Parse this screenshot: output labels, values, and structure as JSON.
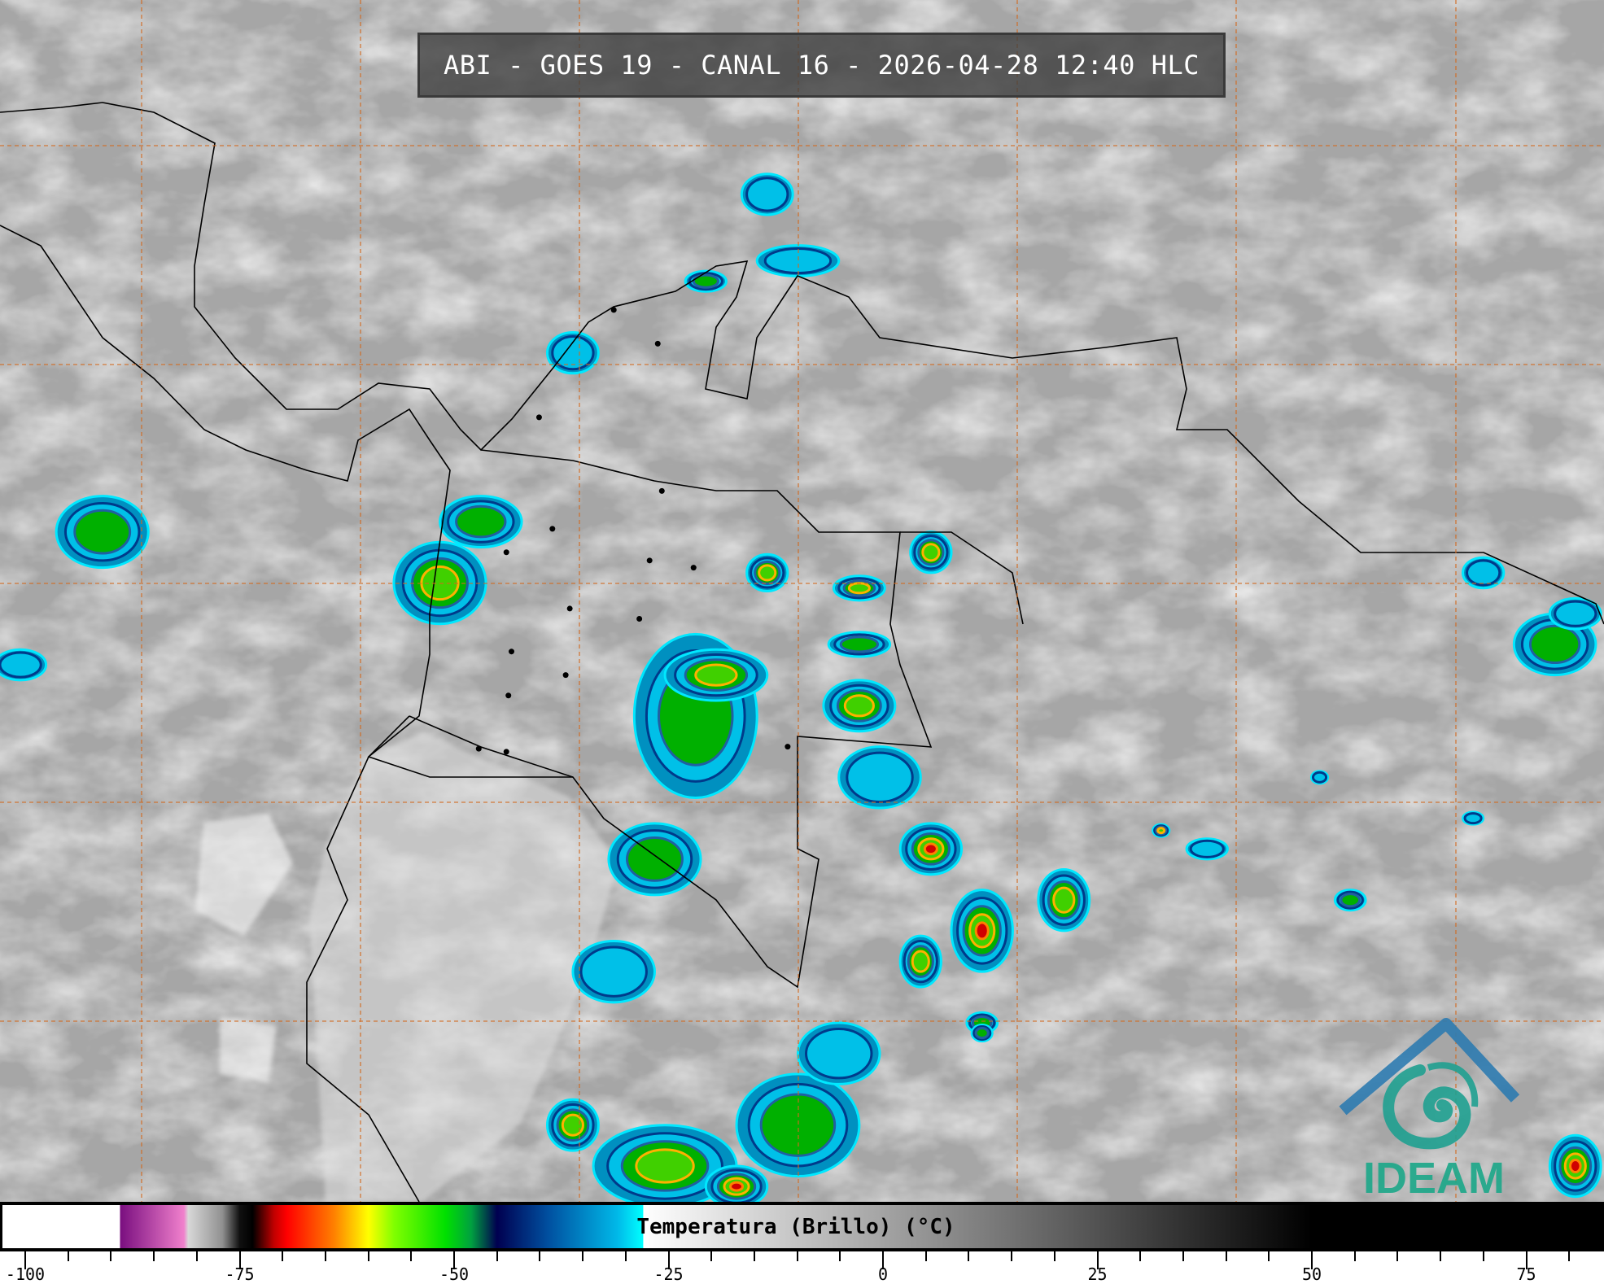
{
  "title": "ABI - GOES 19 - CANAL 16 - 2026-04-28 12:40 HLC",
  "colorbar": {
    "label": "Temperatura (Brillo) (°C)",
    "unit": "°C",
    "range": [
      -102,
      84
    ],
    "tick_labels": [
      "-100",
      "-75",
      "-50",
      "-25",
      "0",
      "25",
      "50",
      "75"
    ],
    "tick_values": [
      -100,
      -75,
      -50,
      -25,
      0,
      25,
      50,
      75
    ],
    "minor_tick_step": 5,
    "stops": [
      {
        "t": -102,
        "color": "#ffffff"
      },
      {
        "t": -89,
        "color": "#ffffff"
      },
      {
        "t": -88.9,
        "color": "#7a0f80"
      },
      {
        "t": -81.5,
        "color": "#f080cc"
      },
      {
        "t": -81,
        "color": "#d8d8d8"
      },
      {
        "t": -77,
        "color": "#909090"
      },
      {
        "t": -75,
        "color": "#101010"
      },
      {
        "t": -73.5,
        "color": "#000000"
      },
      {
        "t": -71,
        "color": "#c00000"
      },
      {
        "t": -69.5,
        "color": "#ff0000"
      },
      {
        "t": -64,
        "color": "#ff8000"
      },
      {
        "t": -60,
        "color": "#ffff00"
      },
      {
        "t": -57,
        "color": "#80ff00"
      },
      {
        "t": -51,
        "color": "#00e000"
      },
      {
        "t": -48,
        "color": "#00a040"
      },
      {
        "t": -45,
        "color": "#000050"
      },
      {
        "t": -39,
        "color": "#0050a0"
      },
      {
        "t": -31,
        "color": "#00b8e8"
      },
      {
        "t": -28,
        "color": "#00ffff"
      },
      {
        "t": -27.9,
        "color": "#ffffff"
      },
      {
        "t": 50,
        "color": "#000000"
      },
      {
        "t": 84,
        "color": "#000000"
      }
    ]
  },
  "logo": {
    "text": "IDEAM",
    "color": "#1fa88a",
    "roof_color": "#2e7bb0"
  },
  "colors": {
    "background": "#a9a9a9",
    "grid": "#d2691e",
    "coastline": "#000000"
  }
}
